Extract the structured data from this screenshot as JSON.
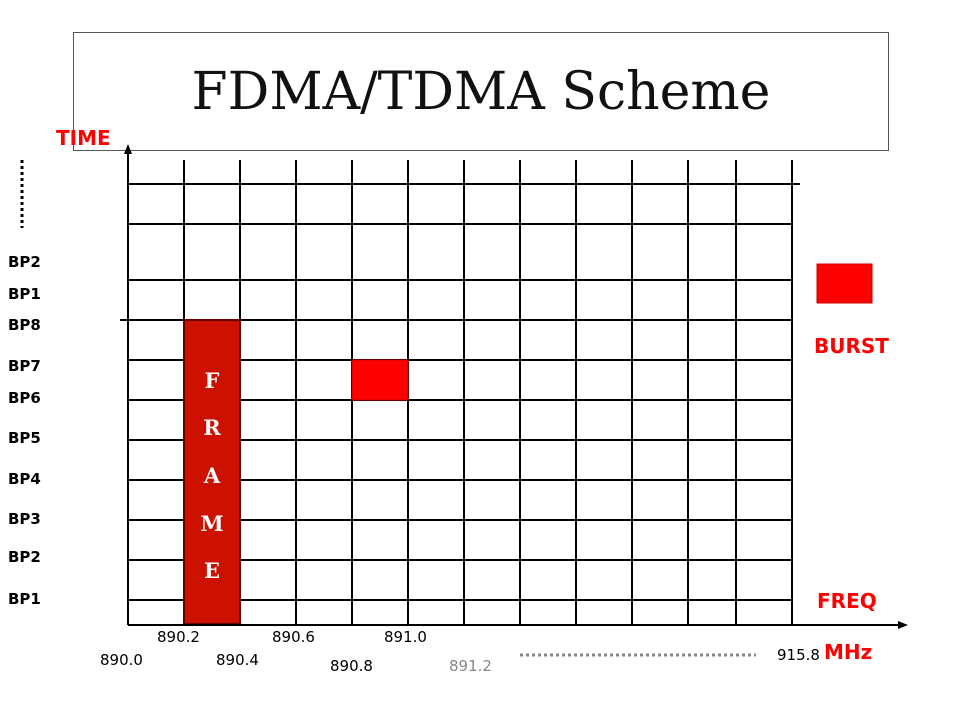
{
  "title": "FDMA/TDMA Scheme",
  "axes": {
    "time_label": "TIME",
    "freq_label": "FREQ",
    "unit_label": "MHz"
  },
  "time_slots": [
    "BP2",
    "BP1",
    "BP8",
    "BP7",
    "BP6",
    "BP5",
    "BP4",
    "BP3",
    "BP2",
    "BP1"
  ],
  "frequencies": {
    "upper_row": [
      "890.2",
      "890.6",
      "891.0"
    ],
    "lower_row": [
      "890.0",
      "890.4",
      "890.8"
    ],
    "highlight": "891.2",
    "last": "915.8"
  },
  "frame_letters": [
    "F",
    "R",
    "A",
    "M",
    "E"
  ],
  "legend": {
    "burst_label": "BURST"
  },
  "colors": {
    "accent_red": "#ff0000",
    "frame_fill": "#cc1100",
    "frame_border": "#660000",
    "grid": "#000000"
  }
}
